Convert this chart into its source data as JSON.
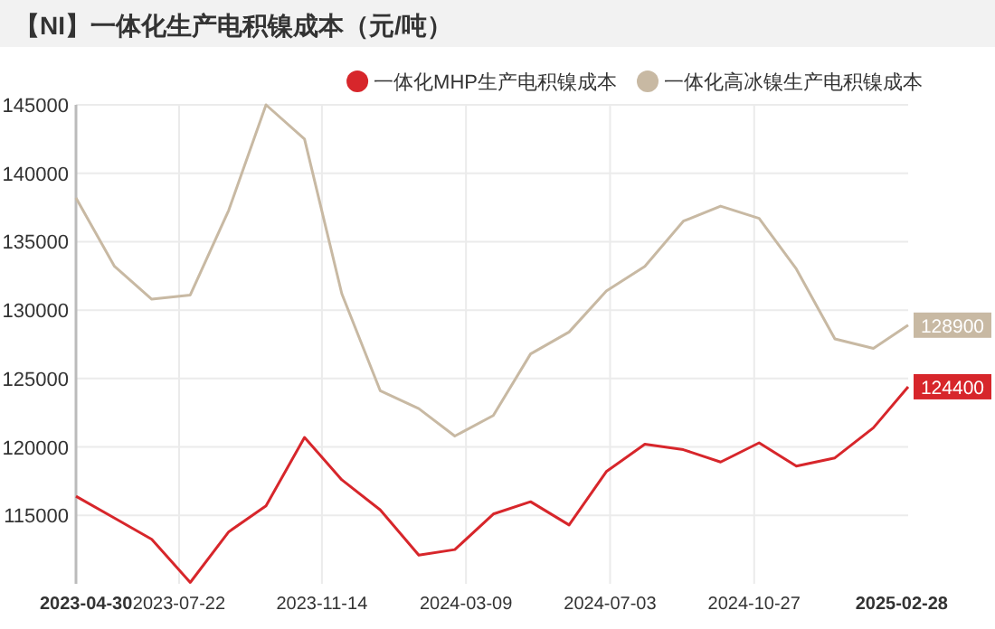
{
  "chart_data": {
    "type": "line",
    "title": "【NI】一体化生产电积镍成本（元/吨）",
    "x": [
      "2023-04-30",
      "2023-05-31",
      "2023-06-30",
      "2023-07-31",
      "2023-08-31",
      "2023-09-30",
      "2023-10-31",
      "2023-11-30",
      "2023-12-31",
      "2024-01-31",
      "2024-02-29",
      "2024-03-31",
      "2024-04-30",
      "2024-05-31",
      "2024-06-30",
      "2024-07-31",
      "2024-08-31",
      "2024-09-30",
      "2024-10-31",
      "2024-11-30",
      "2024-12-31",
      "2025-01-31",
      "2025-02-28"
    ],
    "series": [
      {
        "name": "一体化MHP生产电积镍成本",
        "color": "#d7262b",
        "values": [
          116400,
          114800,
          113250,
          110100,
          113800,
          115700,
          120700,
          117600,
          115400,
          112100,
          112500,
          115100,
          116000,
          114300,
          118200,
          120200,
          119800,
          118900,
          120300,
          118600,
          119200,
          121400,
          124400
        ],
        "value_labels": [
          null,
          null,
          null,
          null,
          null,
          null,
          null,
          null,
          null,
          null,
          null,
          null,
          null,
          null,
          null,
          null,
          null,
          null,
          null,
          null,
          null,
          null,
          "124400"
        ]
      },
      {
        "name": "一体化高冰镍生产电积镍成本",
        "color": "#c8b9a3",
        "values": [
          138200,
          133200,
          130800,
          131100,
          137300,
          145000,
          142500,
          131200,
          124100,
          122800,
          120800,
          122300,
          126800,
          128400,
          131400,
          133200,
          136500,
          137600,
          136700,
          133000,
          127900,
          127200,
          128900
        ],
        "value_labels": [
          null,
          null,
          null,
          null,
          null,
          null,
          null,
          null,
          null,
          null,
          null,
          null,
          null,
          null,
          null,
          null,
          null,
          null,
          null,
          null,
          null,
          null,
          "128900"
        ]
      }
    ],
    "xlim": [
      "2023-04-30",
      "2025-02-28"
    ],
    "xticks": [
      "2023-04-30",
      "2023-07-22",
      "2023-11-14",
      "2024-03-09",
      "2024-07-03",
      "2024-10-27",
      "2025-02-28"
    ],
    "ylim": [
      110000,
      145000
    ],
    "yticks": [
      115000,
      120000,
      125000,
      130000,
      135000,
      140000,
      145000
    ],
    "grid": true,
    "legend": "top right",
    "marker": "none",
    "line_style": "solid"
  }
}
